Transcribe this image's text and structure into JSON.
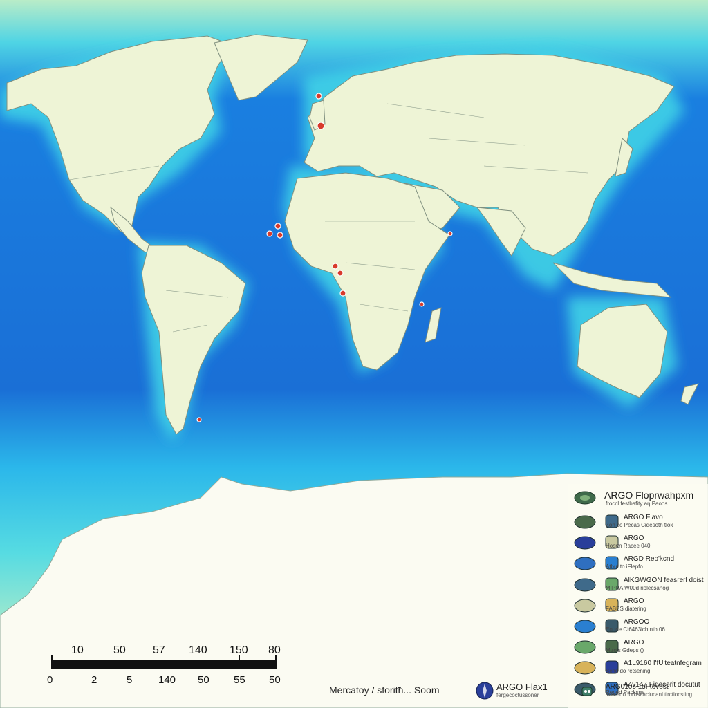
{
  "map": {
    "colors": {
      "deep_ocean": "#1a6fd6",
      "shelf": "#3fd2e6",
      "polar_sea": "#bff0c4",
      "land": "#eef4d6",
      "ice": "#fbfbf2",
      "border": "#8a9a8a",
      "marker": "#d83a2b"
    }
  },
  "legend": {
    "header": {
      "title": "ARGO Floprwahpxm",
      "subtitle": "froccl festbafity aŋ Paoos",
      "icon": "globe-icon"
    },
    "items": [
      {
        "t1": "ARGO Flavo",
        "t2": "Zoh so Pecas Cidesoth tlok",
        "icon_a": "eye-icon",
        "icon_b": "float-icon"
      },
      {
        "t1": "ARGO",
        "t2": "Hosrtn Racee 040",
        "icon_a": "ship-icon",
        "icon_b": "grid-icon"
      },
      {
        "t1": "ARGD Reo'kcnd",
        "t2": "Atbut to iFlepfo",
        "icon_a": "diamond-icon",
        "icon_b": "globe-icon"
      },
      {
        "t1": "AlKGWGON feasrerl doist",
        "t2": "MIPRA W00d riolecsanog",
        "icon_a": "dome-icon",
        "icon_b": "leaf-icon"
      },
      {
        "t1": "ARGO",
        "t2": "FABES diatering",
        "icon_a": "cone-icon",
        "icon_b": "bird-icon"
      },
      {
        "t1": "ARGOO",
        "t2": "Eouoe CI6463lcb.ntb.06",
        "icon_a": "lens-icon",
        "icon_b": "grid-icon"
      },
      {
        "t1": "ARGO",
        "t2": "Mtrols Gdeps ()",
        "icon_a": "ellipse-icon",
        "icon_b": "bird-icon"
      },
      {
        "t1": "A1L9160 I'fU'teatnfegram",
        "t2": "Scnd do retsening",
        "icon_a": "pin-icon",
        "icon_b": "jar-icon"
      },
      {
        "t1": "A4v147 Fidocorit docutut",
        "t2": "Reped Packsge",
        "icon_a": "eye-icon",
        "icon_b": "float-icon"
      }
    ],
    "footer": {
      "t1": "ARG0106 15Ftovost",
      "t2": "Tracedo forosbaclucanl tirctiocsting",
      "icon": "bot-icon"
    }
  },
  "scale": {
    "top_labels": [
      "10",
      "50",
      "57",
      "140",
      "150",
      "80"
    ],
    "bottom_labels": [
      "0",
      "2",
      "5",
      "140",
      "50",
      "55",
      "50"
    ]
  },
  "projection_label": "Mercatoy / sforitħ... Soom",
  "footer_argo": {
    "t1": "ARGO Flax1",
    "t2": "fergecoctussoner",
    "icon": "compass-icon"
  }
}
